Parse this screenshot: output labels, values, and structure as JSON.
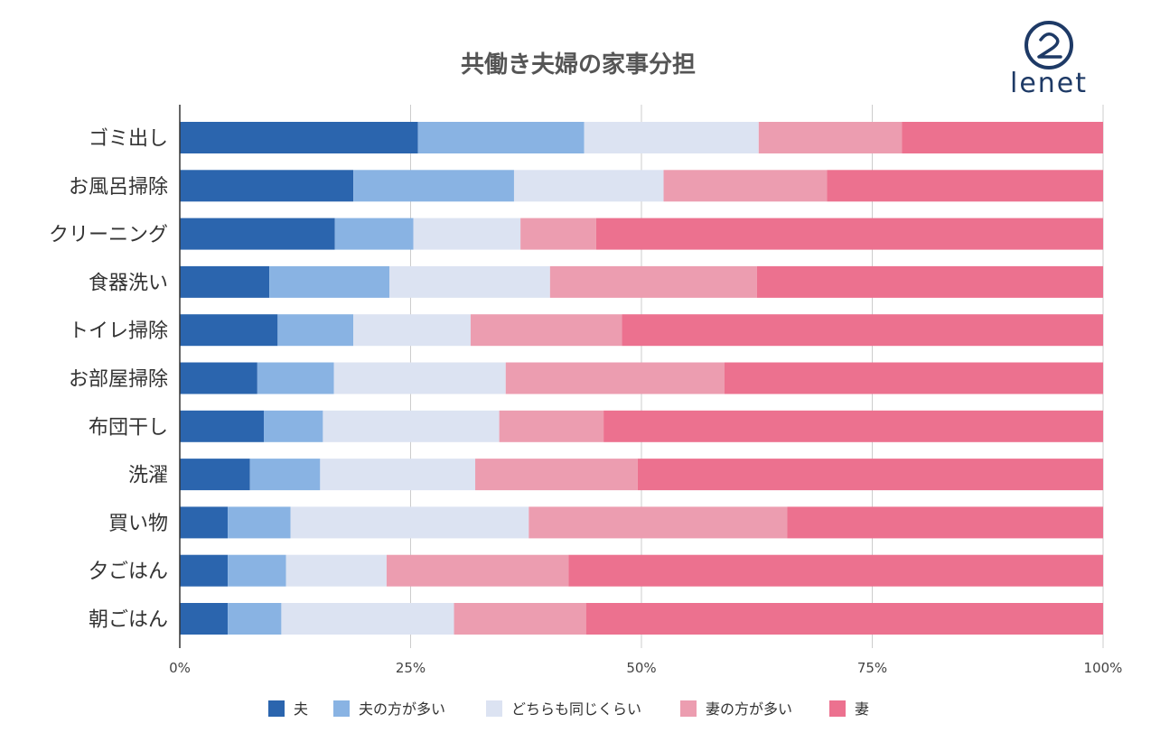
{
  "logo": {
    "text": "lenet"
  },
  "chart_data": {
    "type": "bar",
    "orientation": "horizontal",
    "stacked": true,
    "title": "共働き夫婦の家事分担",
    "categories": [
      "ゴミ出し",
      "お風呂掃除",
      "クリーニング",
      "食器洗い",
      "トイレ掃除",
      "お部屋掃除",
      "布団干し",
      "洗濯",
      "買い物",
      "夕ごはん",
      "朝ごはん"
    ],
    "series": [
      {
        "name": "夫",
        "color": "#2b65ae",
        "values": [
          25.8,
          18.8,
          16.8,
          9.7,
          10.6,
          8.4,
          9.1,
          7.6,
          5.2,
          5.2,
          5.2
        ]
      },
      {
        "name": "夫の方が多い",
        "color": "#89b3e3",
        "values": [
          18.0,
          17.4,
          8.5,
          13.0,
          8.2,
          8.3,
          6.4,
          7.6,
          6.8,
          6.3,
          5.8
        ]
      },
      {
        "name": "どちらも同じくらい",
        "color": "#dce3f2",
        "values": [
          18.9,
          16.2,
          11.6,
          17.4,
          12.7,
          18.6,
          19.1,
          16.8,
          25.8,
          10.9,
          18.7
        ]
      },
      {
        "name": "妻の方が多い",
        "color": "#ec9db0",
        "values": [
          15.5,
          17.7,
          8.2,
          22.4,
          16.4,
          23.7,
          11.3,
          17.6,
          28.0,
          19.7,
          14.3
        ]
      },
      {
        "name": "妻",
        "color": "#ec718f",
        "values": [
          21.8,
          29.9,
          54.9,
          37.5,
          52.1,
          41.0,
          54.1,
          50.4,
          34.2,
          57.9,
          56.0
        ]
      }
    ],
    "xaxis": {
      "range": [
        0,
        100
      ],
      "ticks": [
        0,
        25,
        50,
        75,
        100
      ],
      "tick_labels": [
        "0%",
        "25%",
        "50%",
        "75%",
        "100%"
      ]
    },
    "grid": true,
    "legend": "bottom"
  }
}
